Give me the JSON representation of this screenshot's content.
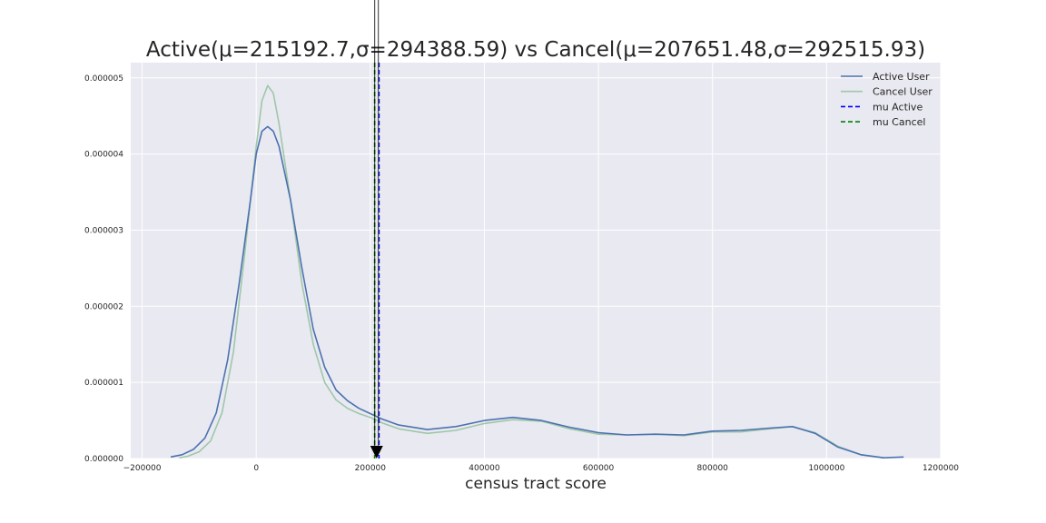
{
  "chart_data": {
    "type": "line",
    "title": "Active(μ=215192.7,σ=294388.59) vs Cancel(μ=207651.48,σ=292515.93)",
    "xlabel": "census tract score",
    "ylabel": "",
    "xlim": [
      -220000,
      1200000
    ],
    "ylim": [
      0,
      5.2e-06
    ],
    "xticks": [
      -200000,
      0,
      200000,
      400000,
      600000,
      800000,
      1000000,
      1200000
    ],
    "xtick_labels": [
      "−200000",
      "0",
      "200000",
      "400000",
      "600000",
      "800000",
      "1000000",
      "1200000"
    ],
    "yticks": [
      0,
      1e-06,
      2e-06,
      3e-06,
      4e-06,
      5e-06
    ],
    "ytick_labels": [
      "0.000000",
      "0.000001",
      "0.000002",
      "0.000003",
      "0.000004",
      "0.000005"
    ],
    "grid": true,
    "legend_position": "top-right",
    "series": [
      {
        "name": "Active User",
        "color": "#4c72b0",
        "style": "solid",
        "points": [
          [
            -150000,
            2e-08
          ],
          [
            -130000,
            5e-08
          ],
          [
            -110000,
            1.2e-07
          ],
          [
            -90000,
            2.7e-07
          ],
          [
            -70000,
            6e-07
          ],
          [
            -50000,
            1.3e-06
          ],
          [
            -30000,
            2.3e-06
          ],
          [
            -10000,
            3.4e-06
          ],
          [
            0,
            4e-06
          ],
          [
            10000,
            4.3e-06
          ],
          [
            20000,
            4.36e-06
          ],
          [
            30000,
            4.3e-06
          ],
          [
            40000,
            4.1e-06
          ],
          [
            60000,
            3.4e-06
          ],
          [
            80000,
            2.5e-06
          ],
          [
            100000,
            1.7e-06
          ],
          [
            120000,
            1.2e-06
          ],
          [
            140000,
            9e-07
          ],
          [
            160000,
            7.6e-07
          ],
          [
            180000,
            6.6e-07
          ],
          [
            200000,
            5.9e-07
          ],
          [
            220000,
            5.2e-07
          ],
          [
            250000,
            4.4e-07
          ],
          [
            300000,
            3.8e-07
          ],
          [
            350000,
            4.2e-07
          ],
          [
            400000,
            5e-07
          ],
          [
            450000,
            5.4e-07
          ],
          [
            500000,
            5e-07
          ],
          [
            550000,
            4.1e-07
          ],
          [
            600000,
            3.4e-07
          ],
          [
            650000,
            3.1e-07
          ],
          [
            700000,
            3.2e-07
          ],
          [
            750000,
            3.1e-07
          ],
          [
            800000,
            3.6e-07
          ],
          [
            850000,
            3.7e-07
          ],
          [
            900000,
            4e-07
          ],
          [
            940000,
            4.2e-07
          ],
          [
            980000,
            3.3e-07
          ],
          [
            1020000,
            1.5e-07
          ],
          [
            1060000,
            5e-08
          ],
          [
            1100000,
            1e-08
          ],
          [
            1135000,
            2e-08
          ]
        ]
      },
      {
        "name": "Cancel User",
        "color": "#9fc7a8",
        "style": "solid",
        "points": [
          [
            -135000,
            1e-08
          ],
          [
            -120000,
            3e-08
          ],
          [
            -100000,
            9e-08
          ],
          [
            -80000,
            2.3e-07
          ],
          [
            -60000,
            6e-07
          ],
          [
            -40000,
            1.4e-06
          ],
          [
            -20000,
            2.7e-06
          ],
          [
            0,
            4.1e-06
          ],
          [
            10000,
            4.7e-06
          ],
          [
            20000,
            4.9e-06
          ],
          [
            30000,
            4.8e-06
          ],
          [
            40000,
            4.4e-06
          ],
          [
            60000,
            3.4e-06
          ],
          [
            80000,
            2.3e-06
          ],
          [
            100000,
            1.5e-06
          ],
          [
            120000,
            1e-06
          ],
          [
            140000,
            7.7e-07
          ],
          [
            160000,
            6.6e-07
          ],
          [
            180000,
            5.9e-07
          ],
          [
            200000,
            5.4e-07
          ],
          [
            220000,
            4.7e-07
          ],
          [
            250000,
            3.9e-07
          ],
          [
            300000,
            3.3e-07
          ],
          [
            350000,
            3.7e-07
          ],
          [
            400000,
            4.6e-07
          ],
          [
            450000,
            5.1e-07
          ],
          [
            500000,
            4.9e-07
          ],
          [
            550000,
            3.9e-07
          ],
          [
            600000,
            3.2e-07
          ],
          [
            650000,
            3.1e-07
          ],
          [
            700000,
            3.2e-07
          ],
          [
            750000,
            3e-07
          ],
          [
            800000,
            3.5e-07
          ],
          [
            850000,
            3.5e-07
          ],
          [
            900000,
            3.9e-07
          ],
          [
            940000,
            4.2e-07
          ],
          [
            980000,
            3.4e-07
          ],
          [
            1020000,
            1.6e-07
          ],
          [
            1060000,
            5e-08
          ],
          [
            1100000,
            1e-08
          ]
        ]
      }
    ],
    "vlines": [
      {
        "name": "mu Active",
        "x": 215192.7,
        "color": "#0000ff",
        "style": "dashed"
      },
      {
        "name": "mu Cancel",
        "x": 207651.48,
        "color": "#008000",
        "style": "dashed"
      }
    ],
    "annotation": {
      "x": 211000,
      "color": "#000000"
    }
  }
}
